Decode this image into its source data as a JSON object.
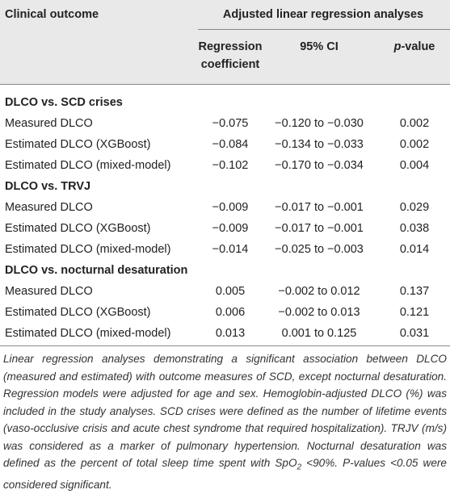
{
  "header": {
    "clinical_outcome": "Clinical outcome",
    "group": "Adjusted linear regression analyses",
    "coefficient": [
      "Regression",
      "coefficient"
    ],
    "ci": "95% CI",
    "p_value": {
      "italic": "p",
      "rest": "-value"
    }
  },
  "sections": [
    {
      "title": "DLCO vs. SCD crises",
      "rows": [
        [
          "Measured DLCO",
          "−0.075",
          "−0.120 to −0.030",
          "0.002"
        ],
        [
          "Estimated DLCO (XGBoost)",
          "−0.084",
          "−0.134 to −0.033",
          "0.002"
        ],
        [
          "Estimated DLCO (mixed-model)",
          "−0.102",
          "−0.170 to −0.034",
          "0.004"
        ]
      ]
    },
    {
      "title": "DLCO vs. TRVJ",
      "rows": [
        [
          "Measured DLCO",
          "−0.009",
          "−0.017 to −0.001",
          "0.029"
        ],
        [
          "Estimated DLCO (XGBoost)",
          "−0.009",
          "−0.017 to −0.001",
          "0.038"
        ],
        [
          "Estimated DLCO (mixed-model)",
          "−0.014",
          "−0.025 to −0.003",
          "0.014"
        ]
      ]
    },
    {
      "title": "DLCO vs. nocturnal desaturation",
      "rows": [
        [
          "Measured DLCO",
          "0.005",
          "−0.002 to 0.012",
          "0.137"
        ],
        [
          "Estimated DLCO (XGBoost)",
          "0.006",
          "−0.002 to 0.013",
          "0.121"
        ],
        [
          "Estimated DLCO (mixed-model)",
          "0.013",
          "0.001 to 0.125",
          "0.031"
        ]
      ]
    }
  ],
  "footnote": [
    "Linear regression analyses demonstrating a significant association between DLCO (measured and estimated) with outcome measures of SCD, except nocturnal desaturation. Regression models were adjusted for age and sex. Hemoglobin-adjusted DLCO (%) was included in the study analyses. SCD crises were defined as the number of lifetime events (vaso-occlusive crisis and acute chest syndrome that required hospitalization). TRJV (m/s) was considered as a marker of pulmonary hypertension. Nocturnal desaturation was defined as the percent of total sleep time spent with SpO",
    "2",
    " <90%. P-values <0.05 were considered significant."
  ]
}
